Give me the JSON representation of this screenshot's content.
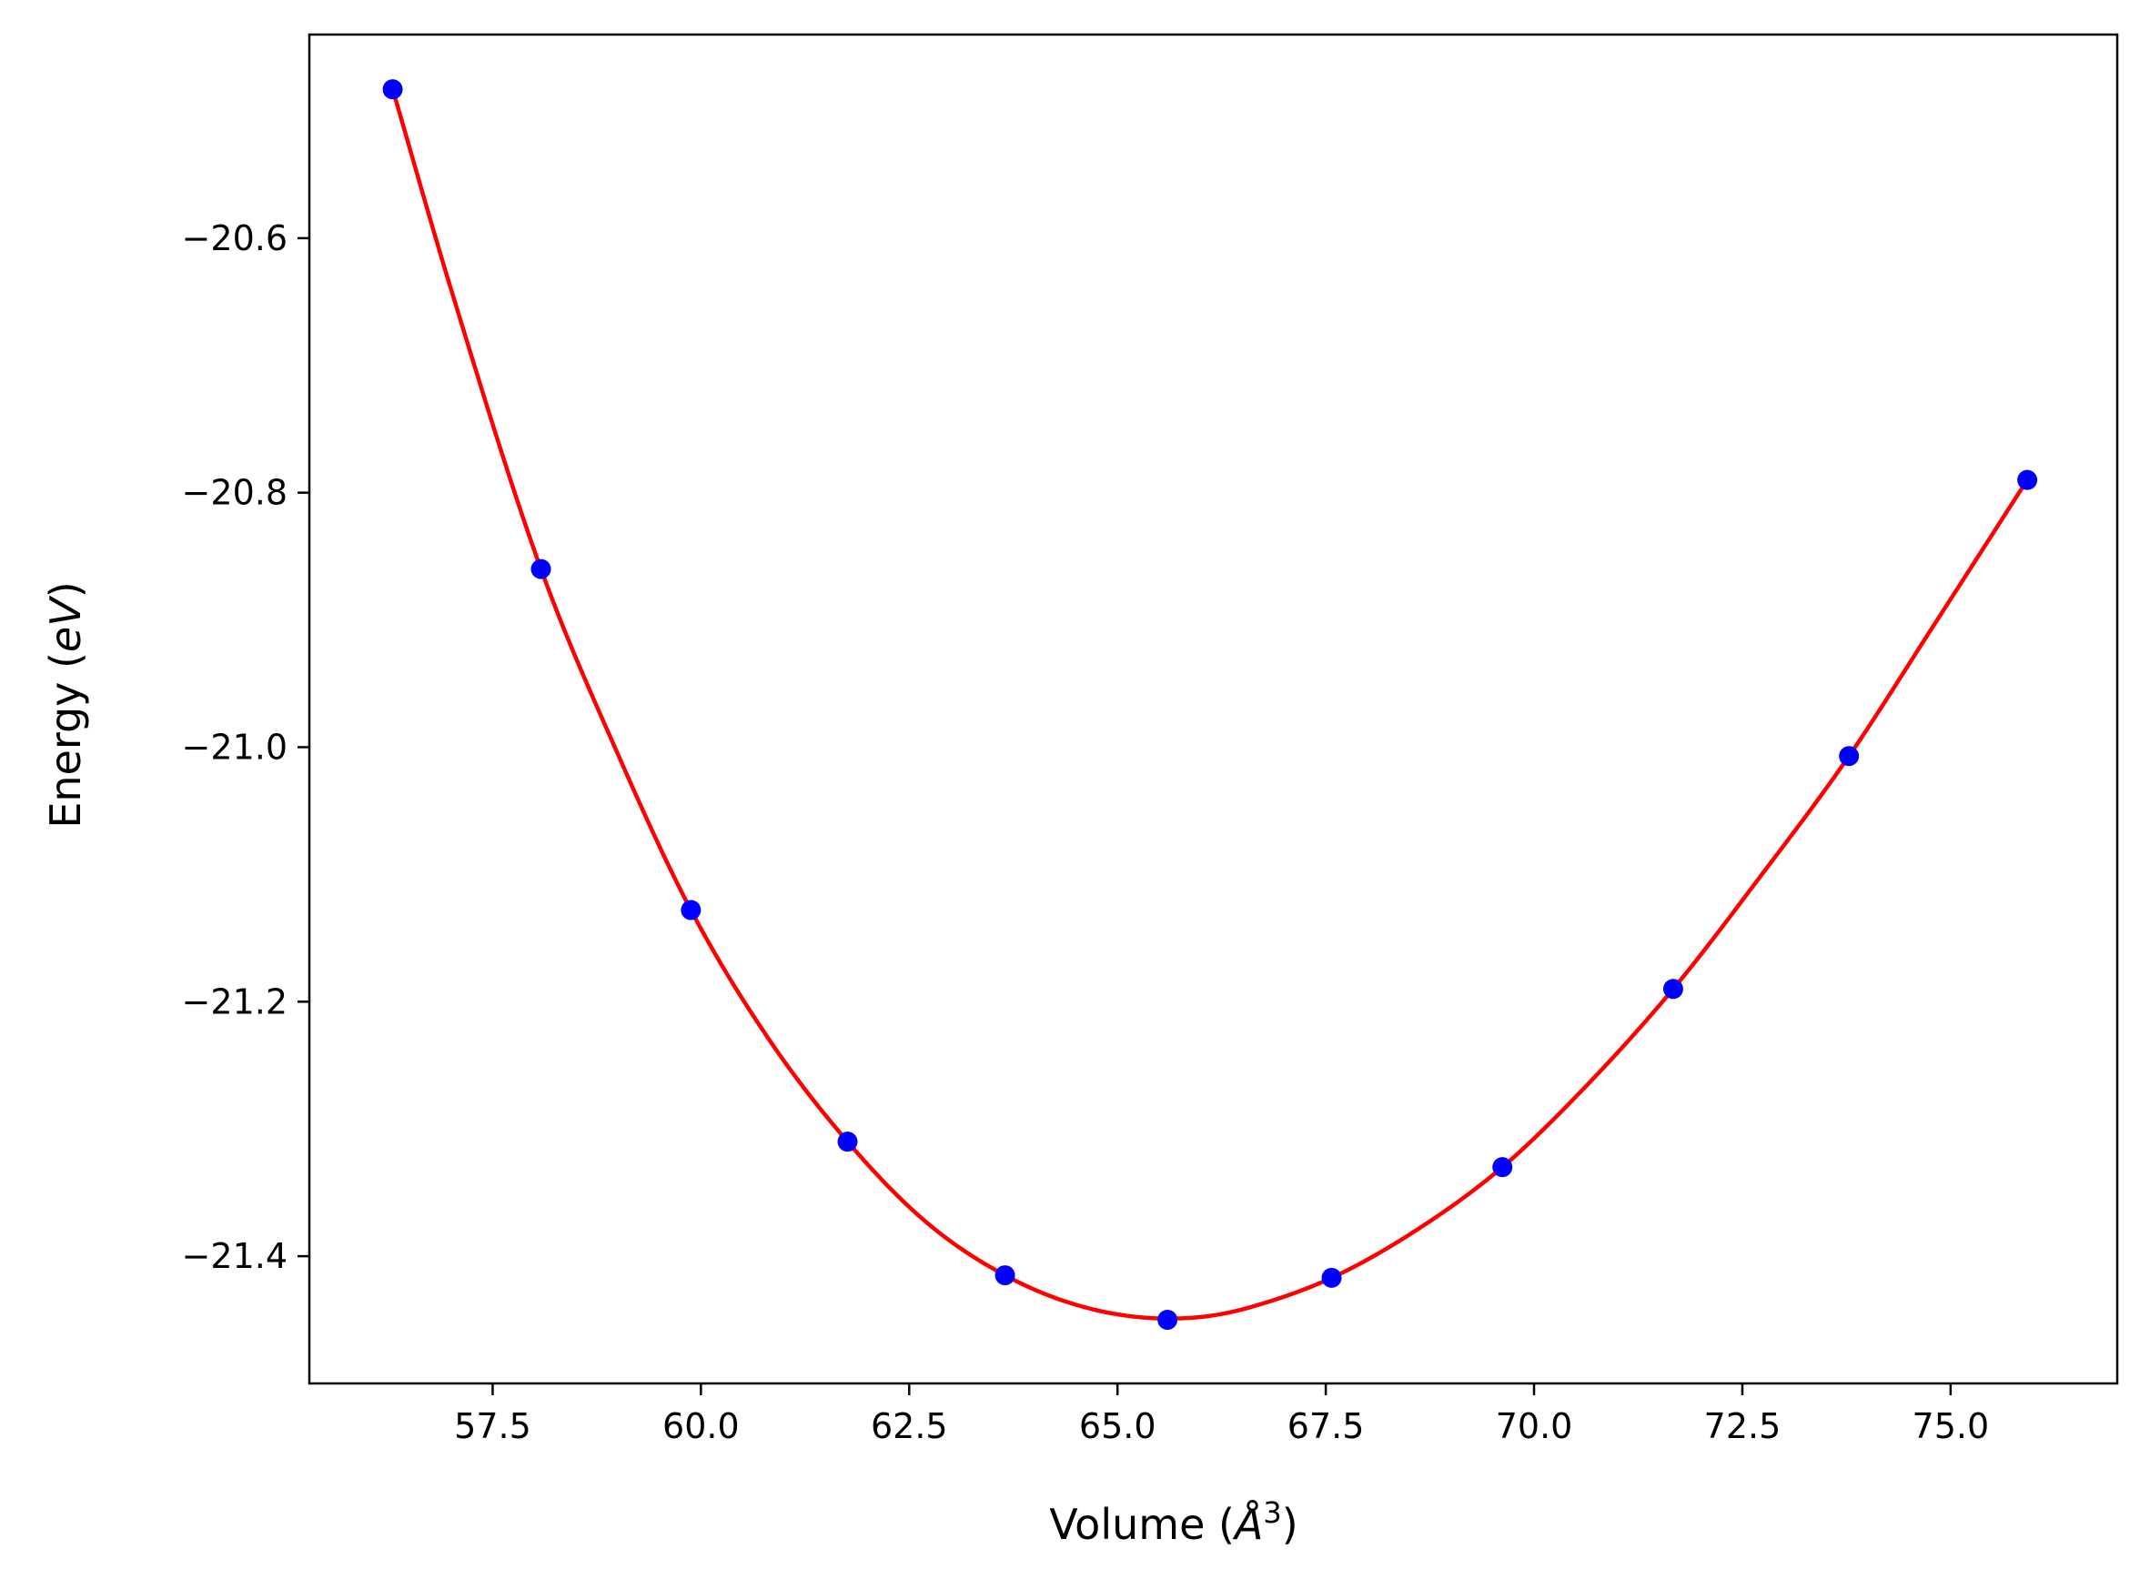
{
  "chart_data": {
    "type": "scatter",
    "title": "",
    "xlabel_main": "Volume (",
    "xlabel_unit": "Å",
    "xlabel_sup": "3",
    "xlabel_end": ")",
    "ylabel_main": "Energy (",
    "ylabel_unit": "eV",
    "ylabel_end": ")",
    "xlim": [
      55.3,
      77.0
    ],
    "ylim": [
      -21.5,
      -20.44
    ],
    "xticks": [
      57.5,
      60.0,
      62.5,
      65.0,
      67.5,
      70.0,
      72.5,
      75.0
    ],
    "xtick_labels": [
      "57.5",
      "60.0",
      "62.5",
      "65.0",
      "67.5",
      "70.0",
      "72.5",
      "75.0"
    ],
    "yticks": [
      -20.6,
      -20.8,
      -21.0,
      -21.2,
      -21.4
    ],
    "ytick_labels": [
      "−20.6",
      "−20.8",
      "−21.0",
      "−21.2",
      "−21.4"
    ],
    "grid": false,
    "legend": "none",
    "series": [
      {
        "kind": "points",
        "color": "#0000ff",
        "x": [
          56.3,
          58.08,
          59.88,
          61.76,
          63.65,
          65.6,
          67.57,
          69.62,
          71.67,
          73.78,
          75.92
        ],
        "y": [
          -20.483,
          -20.86,
          -21.128,
          -21.31,
          -21.415,
          -21.45,
          -21.417,
          -21.33,
          -21.19,
          -21.007,
          -20.79
        ]
      },
      {
        "kind": "fit-curve",
        "color": "#ff0000",
        "x": [
          56.3,
          57.0,
          58.08,
          59.0,
          59.88,
          60.8,
          61.76,
          62.7,
          63.65,
          64.6,
          65.6,
          66.1,
          66.6,
          67.57,
          68.6,
          69.62,
          70.6,
          71.67,
          72.7,
          73.78,
          74.8,
          75.92
        ],
        "y": [
          -20.483,
          -20.64,
          -20.86,
          -21.005,
          -21.128,
          -21.228,
          -21.31,
          -21.373,
          -21.415,
          -21.44,
          -21.449,
          -21.447,
          -21.44,
          -21.417,
          -21.379,
          -21.33,
          -21.268,
          -21.19,
          -21.103,
          -21.007,
          -20.904,
          -20.79
        ]
      }
    ]
  }
}
